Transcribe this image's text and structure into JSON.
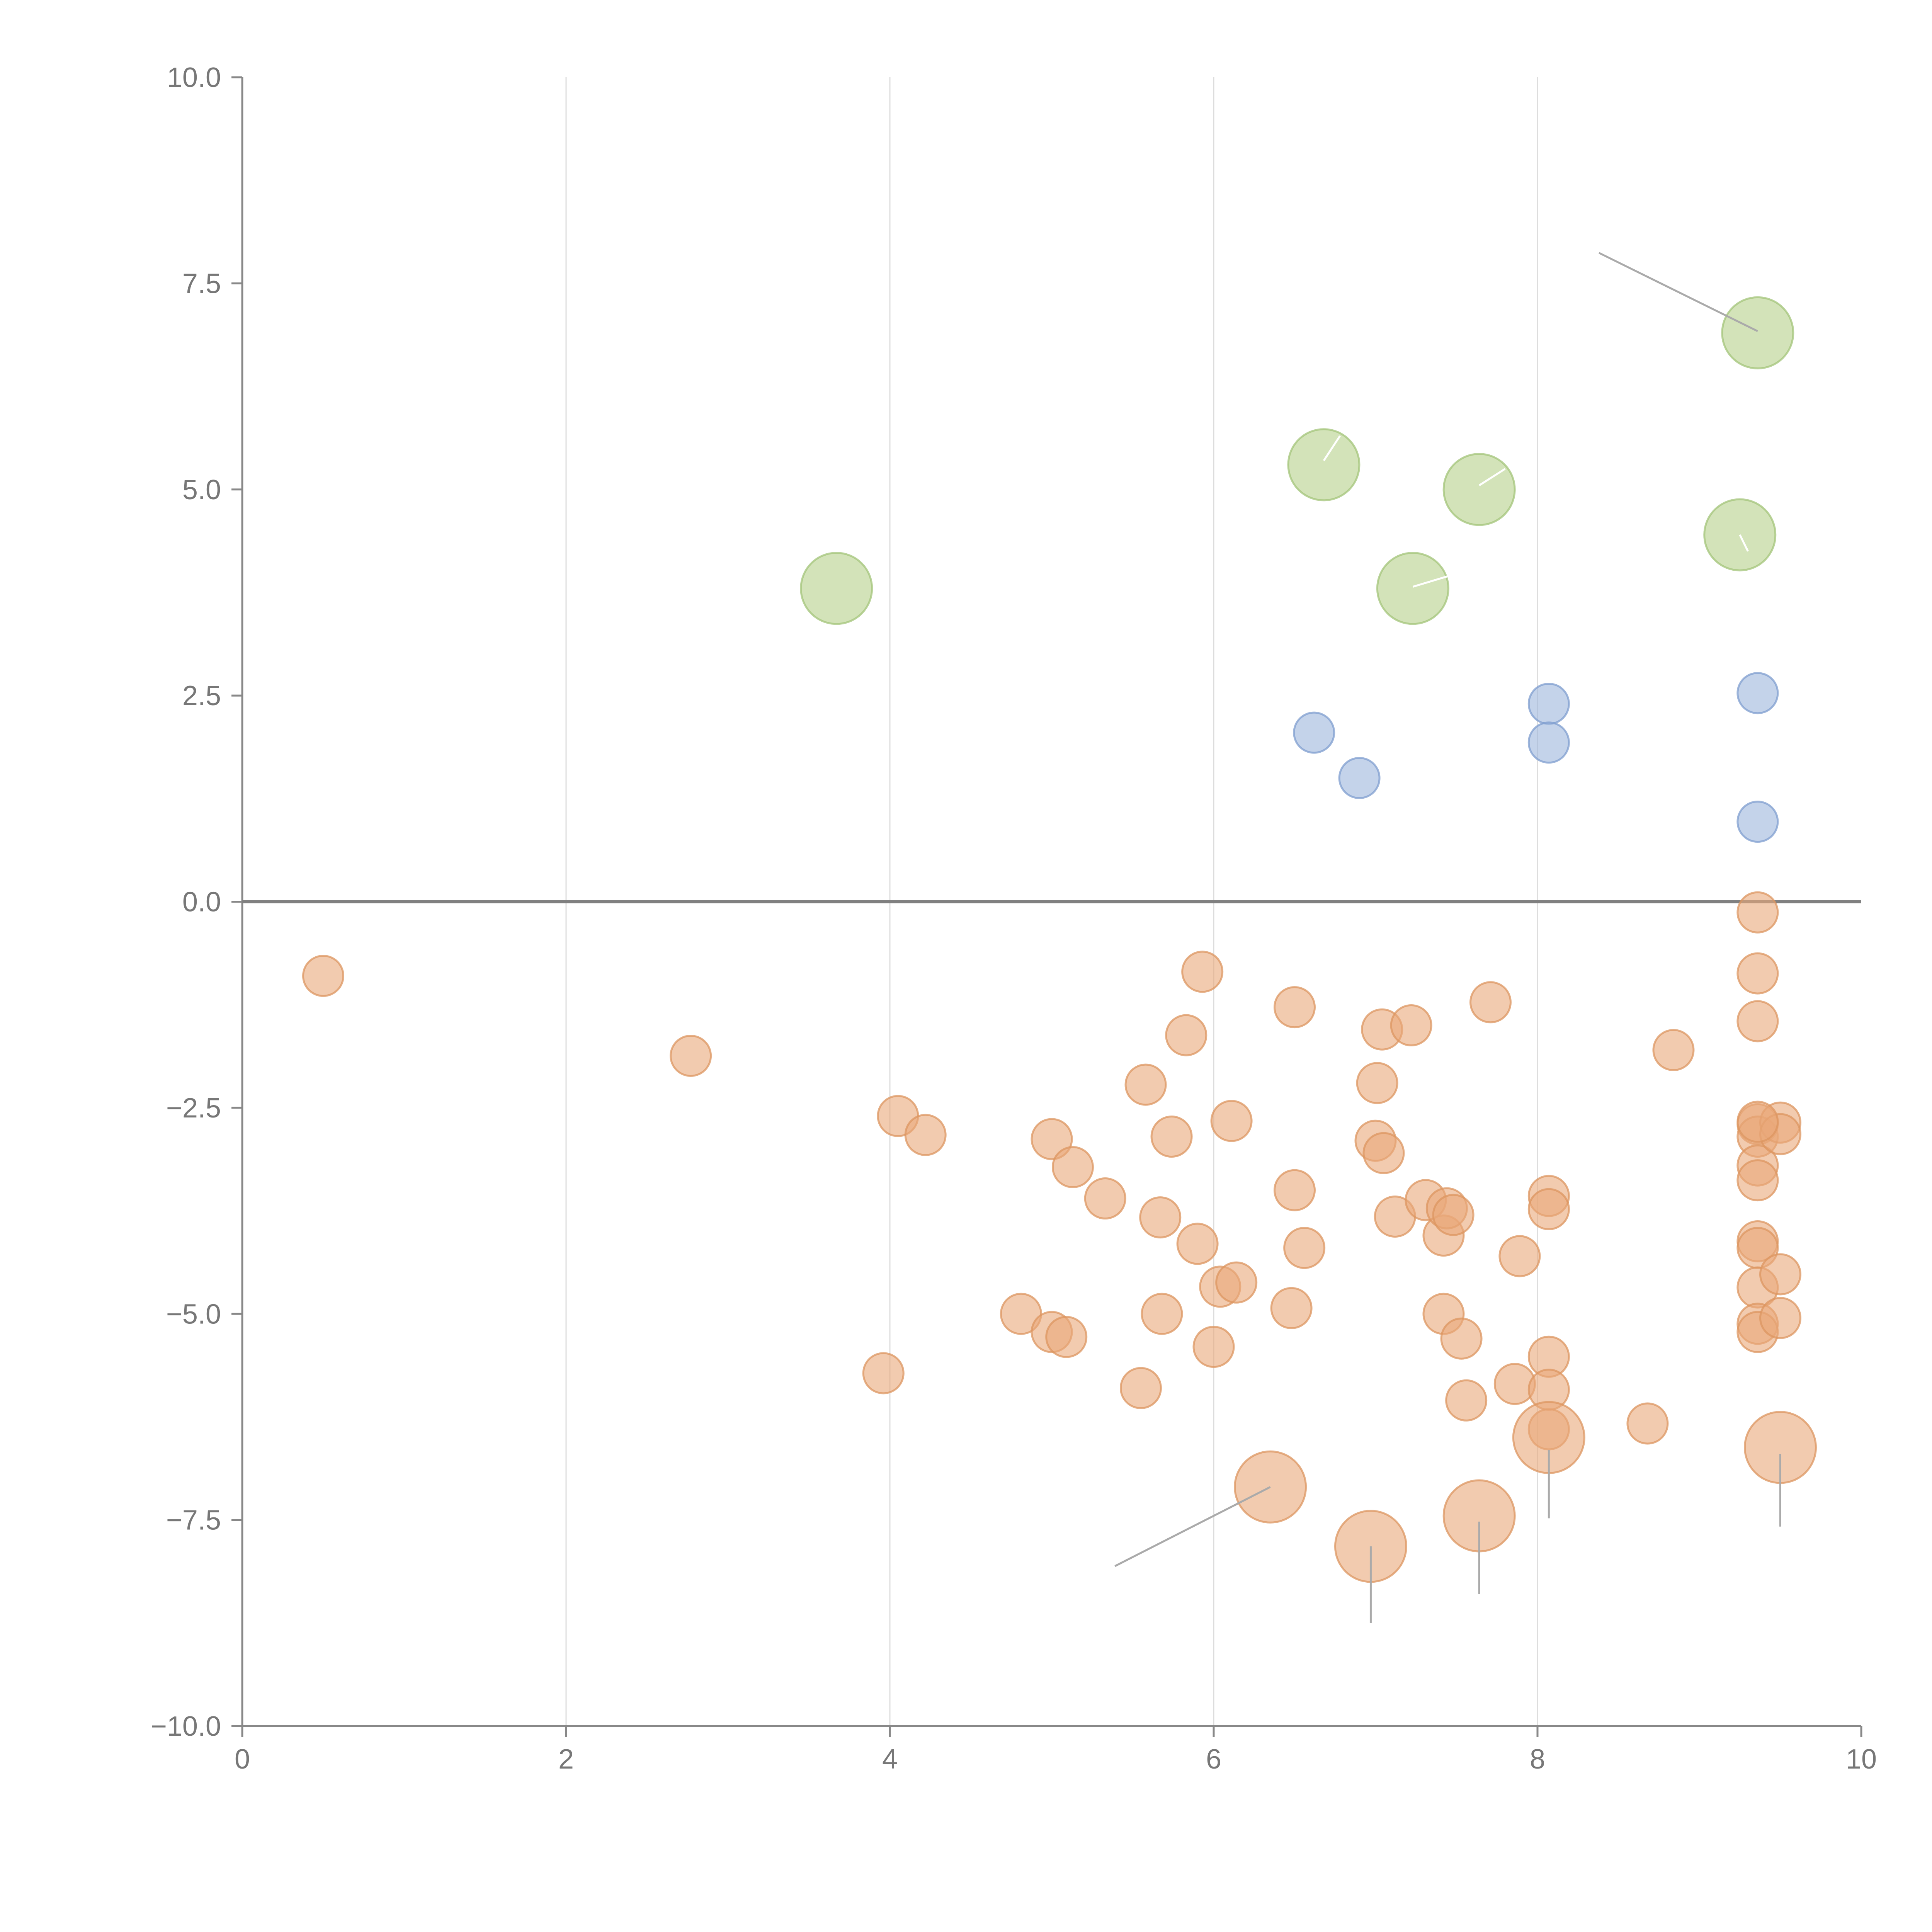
{
  "chart_data": {
    "type": "scatter",
    "title": "",
    "xlabel": "",
    "ylabel": "",
    "xlim": [
      0,
      10
    ],
    "ylim": [
      -10,
      10
    ],
    "x_ticks": [
      0,
      2,
      4,
      6,
      8,
      10
    ],
    "x_tick_labels": [
      "0",
      "2",
      "4",
      "6",
      "8",
      "10"
    ],
    "y_ticks": [
      10,
      7.5,
      5,
      2.5,
      0,
      -2.5,
      -5,
      -7.5,
      -10
    ],
    "y_tick_labels": [
      "10.0",
      "7.5",
      "5.0",
      "2.5",
      "0.0",
      "−2.5",
      "−5.0",
      "−7.5",
      "−10.0"
    ],
    "grid": "vertical",
    "zero_line": 0,
    "series": [
      {
        "name": "green",
        "color": "#b5d18a",
        "stroke": "#a3c47a",
        "size": "large",
        "points": [
          {
            "x": 3.67,
            "y": 3.8
          },
          {
            "x": 6.68,
            "y": 5.3
          },
          {
            "x": 7.64,
            "y": 5.0
          },
          {
            "x": 7.23,
            "y": 3.8
          },
          {
            "x": 9.25,
            "y": 4.45
          },
          {
            "x": 9.36,
            "y": 6.9
          }
        ]
      },
      {
        "name": "blue",
        "color": "#9db5dc",
        "stroke": "#7f9dcf",
        "size": "small",
        "points": [
          {
            "x": 6.62,
            "y": 2.05
          },
          {
            "x": 6.9,
            "y": 1.5
          },
          {
            "x": 8.07,
            "y": 2.4
          },
          {
            "x": 8.07,
            "y": 1.93
          },
          {
            "x": 9.36,
            "y": 2.53
          },
          {
            "x": 9.36,
            "y": 0.97
          }
        ]
      },
      {
        "name": "orange-small",
        "color": "#e9a97a",
        "stroke": "#dc9660",
        "size": "small",
        "points": [
          {
            "x": 0.5,
            "y": -0.9
          },
          {
            "x": 2.77,
            "y": -1.87
          },
          {
            "x": 3.96,
            "y": -5.72
          },
          {
            "x": 4.05,
            "y": -2.6
          },
          {
            "x": 4.22,
            "y": -2.83
          },
          {
            "x": 4.81,
            "y": -5.0
          },
          {
            "x": 5.0,
            "y": -2.88
          },
          {
            "x": 5.0,
            "y": -5.22
          },
          {
            "x": 5.09,
            "y": -5.28
          },
          {
            "x": 5.13,
            "y": -3.22
          },
          {
            "x": 5.33,
            "y": -3.6
          },
          {
            "x": 5.55,
            "y": -5.9
          },
          {
            "x": 5.58,
            "y": -2.22
          },
          {
            "x": 5.67,
            "y": -3.83
          },
          {
            "x": 5.68,
            "y": -5.0
          },
          {
            "x": 5.74,
            "y": -2.85
          },
          {
            "x": 5.83,
            "y": -1.62
          },
          {
            "x": 5.9,
            "y": -4.15
          },
          {
            "x": 5.93,
            "y": -0.85
          },
          {
            "x": 6.0,
            "y": -5.4
          },
          {
            "x": 6.04,
            "y": -4.67
          },
          {
            "x": 6.11,
            "y": -2.66
          },
          {
            "x": 6.14,
            "y": -4.62
          },
          {
            "x": 6.48,
            "y": -4.93
          },
          {
            "x": 6.5,
            "y": -3.5
          },
          {
            "x": 6.5,
            "y": -1.28
          },
          {
            "x": 6.56,
            "y": -4.2
          },
          {
            "x": 7.0,
            "y": -2.9
          },
          {
            "x": 7.01,
            "y": -2.2
          },
          {
            "x": 7.04,
            "y": -1.55
          },
          {
            "x": 7.05,
            "y": -3.05
          },
          {
            "x": 7.12,
            "y": -3.82
          },
          {
            "x": 7.22,
            "y": -1.5
          },
          {
            "x": 7.31,
            "y": -3.62
          },
          {
            "x": 7.42,
            "y": -4.05
          },
          {
            "x": 7.42,
            "y": -5.0
          },
          {
            "x": 7.44,
            "y": -3.72
          },
          {
            "x": 7.48,
            "y": -3.8
          },
          {
            "x": 7.53,
            "y": -5.3
          },
          {
            "x": 7.56,
            "y": -6.05
          },
          {
            "x": 7.71,
            "y": -1.22
          },
          {
            "x": 7.86,
            "y": -5.85
          },
          {
            "x": 7.89,
            "y": -4.3
          },
          {
            "x": 8.07,
            "y": -3.57
          },
          {
            "x": 8.07,
            "y": -3.73
          },
          {
            "x": 8.07,
            "y": -5.52
          },
          {
            "x": 8.07,
            "y": -5.92
          },
          {
            "x": 8.07,
            "y": -6.4
          },
          {
            "x": 8.68,
            "y": -6.33
          },
          {
            "x": 8.84,
            "y": -1.8
          },
          {
            "x": 9.36,
            "y": -0.13
          },
          {
            "x": 9.36,
            "y": -0.87
          },
          {
            "x": 9.36,
            "y": -1.45
          },
          {
            "x": 9.36,
            "y": -2.7
          },
          {
            "x": 9.36,
            "y": -2.85
          },
          {
            "x": 9.36,
            "y": -3.2
          },
          {
            "x": 9.36,
            "y": -3.38
          },
          {
            "x": 9.36,
            "y": -4.12
          },
          {
            "x": 9.36,
            "y": -4.2
          },
          {
            "x": 9.36,
            "y": -4.68
          },
          {
            "x": 9.36,
            "y": -5.12
          },
          {
            "x": 9.36,
            "y": -5.22
          },
          {
            "x": 9.5,
            "y": -2.68
          },
          {
            "x": 9.5,
            "y": -2.82
          },
          {
            "x": 9.5,
            "y": -4.52
          },
          {
            "x": 9.5,
            "y": -5.05
          },
          {
            "x": 9.36,
            "y": -2.67
          }
        ]
      },
      {
        "name": "orange-large",
        "color": "#e9a97a",
        "stroke": "#dc9660",
        "size": "large",
        "points": [
          {
            "x": 6.35,
            "y": -7.1
          },
          {
            "x": 6.97,
            "y": -7.82
          },
          {
            "x": 7.64,
            "y": -7.45
          },
          {
            "x": 8.07,
            "y": -6.5
          },
          {
            "x": 9.5,
            "y": -6.62
          }
        ]
      }
    ],
    "annotation_lines": [
      {
        "x1": 9.36,
        "y1": 6.92,
        "x2": 8.38,
        "y2": 7.87,
        "color": "#aaaaaa"
      },
      {
        "x1": 6.35,
        "y1": -7.1,
        "x2": 5.39,
        "y2": -8.06,
        "color": "#aaaaaa"
      },
      {
        "x1": 6.97,
        "y1": -7.82,
        "x2": 6.97,
        "y2": -8.75,
        "color": "#aaaaaa"
      },
      {
        "x1": 7.64,
        "y1": -7.52,
        "x2": 7.64,
        "y2": -8.4,
        "color": "#aaaaaa"
      },
      {
        "x1": 8.07,
        "y1": -6.65,
        "x2": 8.07,
        "y2": -7.48,
        "color": "#aaaaaa"
      },
      {
        "x1": 9.5,
        "y1": -6.7,
        "x2": 9.5,
        "y2": -7.58,
        "color": "#aaaaaa"
      },
      {
        "x1": 6.68,
        "y1": 5.35,
        "x2": 6.78,
        "y2": 5.65,
        "color": "#ffffff"
      },
      {
        "x1": 7.64,
        "y1": 5.05,
        "x2": 7.8,
        "y2": 5.25,
        "color": "#ffffff"
      },
      {
        "x1": 7.23,
        "y1": 3.82,
        "x2": 7.45,
        "y2": 3.95,
        "color": "#ffffff"
      },
      {
        "x1": 9.25,
        "y1": 4.45,
        "x2": 9.3,
        "y2": 4.25,
        "color": "#ffffff"
      }
    ]
  }
}
